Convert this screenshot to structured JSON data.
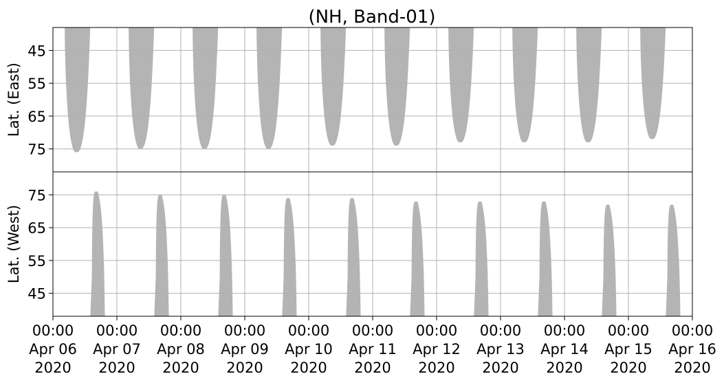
{
  "chart_data": {
    "type": "heatmap",
    "title": "(NH, Band-01)",
    "shared_x": {
      "start": "2020-04-06T00:00",
      "end": "2020-04-16T00:00",
      "ticks": [
        {
          "time": "00:00",
          "date": "Apr 06",
          "year": "2020"
        },
        {
          "time": "00:00",
          "date": "Apr 07",
          "year": "2020"
        },
        {
          "time": "00:00",
          "date": "Apr 08",
          "year": "2020"
        },
        {
          "time": "00:00",
          "date": "Apr 09",
          "year": "2020"
        },
        {
          "time": "00:00",
          "date": "Apr 10",
          "year": "2020"
        },
        {
          "time": "00:00",
          "date": "Apr 11",
          "year": "2020"
        },
        {
          "time": "00:00",
          "date": "Apr 12",
          "year": "2020"
        },
        {
          "time": "00:00",
          "date": "Apr 13",
          "year": "2020"
        },
        {
          "time": "00:00",
          "date": "Apr 14",
          "year": "2020"
        },
        {
          "time": "00:00",
          "date": "Apr 15",
          "year": "2020"
        },
        {
          "time": "00:00",
          "date": "Apr 16",
          "year": "2020"
        }
      ]
    },
    "grid": true,
    "fill_color": "#b4b4b4",
    "panels": [
      {
        "ylabel": "Lat. (East)",
        "yticks": [
          45,
          55,
          65,
          75
        ],
        "ylim": [
          38,
          82
        ],
        "y_inverted": true,
        "segments": [
          {
            "start": "2020-04-06T04:00",
            "end": "2020-04-06T14:00",
            "max_lat": 76
          },
          {
            "start": "2020-04-07T04:00",
            "end": "2020-04-07T14:00",
            "max_lat": 75
          },
          {
            "start": "2020-04-08T04:00",
            "end": "2020-04-08T14:00",
            "max_lat": 75
          },
          {
            "start": "2020-04-09T04:00",
            "end": "2020-04-09T14:00",
            "max_lat": 75
          },
          {
            "start": "2020-04-10T04:00",
            "end": "2020-04-10T14:00",
            "max_lat": 74
          },
          {
            "start": "2020-04-11T04:00",
            "end": "2020-04-11T14:00",
            "max_lat": 74
          },
          {
            "start": "2020-04-12T04:00",
            "end": "2020-04-12T14:00",
            "max_lat": 73
          },
          {
            "start": "2020-04-13T04:00",
            "end": "2020-04-13T14:00",
            "max_lat": 73
          },
          {
            "start": "2020-04-14T04:00",
            "end": "2020-04-14T14:00",
            "max_lat": 73
          },
          {
            "start": "2020-04-15T04:00",
            "end": "2020-04-15T14:00",
            "max_lat": 72
          }
        ]
      },
      {
        "ylabel": "Lat. (West)",
        "yticks": [
          45,
          55,
          65,
          75
        ],
        "ylim": [
          38,
          82
        ],
        "y_inverted": false,
        "segments": [
          {
            "start": "2020-04-06T14:00",
            "end": "2020-04-07T00:00",
            "max_lat": 76
          },
          {
            "start": "2020-04-07T14:00",
            "end": "2020-04-08T00:00",
            "max_lat": 75
          },
          {
            "start": "2020-04-08T14:00",
            "end": "2020-04-09T00:00",
            "max_lat": 75
          },
          {
            "start": "2020-04-09T14:00",
            "end": "2020-04-10T00:00",
            "max_lat": 74
          },
          {
            "start": "2020-04-10T14:00",
            "end": "2020-04-11T00:00",
            "max_lat": 74
          },
          {
            "start": "2020-04-11T14:00",
            "end": "2020-04-12T00:00",
            "max_lat": 73
          },
          {
            "start": "2020-04-12T14:00",
            "end": "2020-04-13T00:00",
            "max_lat": 73
          },
          {
            "start": "2020-04-13T14:00",
            "end": "2020-04-14T00:00",
            "max_lat": 73
          },
          {
            "start": "2020-04-14T14:00",
            "end": "2020-04-15T00:00",
            "max_lat": 72
          },
          {
            "start": "2020-04-15T14:00",
            "end": "2020-04-16T00:00",
            "max_lat": 72
          }
        ]
      }
    ]
  }
}
